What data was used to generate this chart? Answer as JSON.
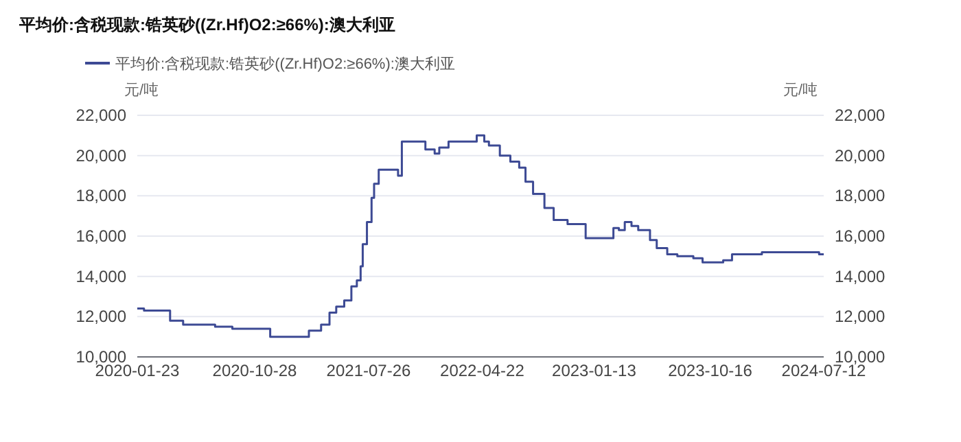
{
  "chart_data": {
    "type": "step",
    "title": "平均价:含税现款:锆英砂((Zr.Hf)O2:≥66%):澳大利亚",
    "ylabel": "元/吨",
    "y2label": "元/吨",
    "x": [
      "2020-01-23",
      "2020-02-08",
      "2020-04-10",
      "2020-05-11",
      "2020-07-26",
      "2020-09-05",
      "2020-12-04",
      "2021-03-06",
      "2021-04-04",
      "2021-04-24",
      "2021-05-10",
      "2021-05-29",
      "2021-06-15",
      "2021-06-28",
      "2021-07-07",
      "2021-07-12",
      "2021-07-22",
      "2021-08-02",
      "2021-08-08",
      "2021-08-19",
      "2021-10-04",
      "2021-10-13",
      "2021-12-08",
      "2021-12-30",
      "2022-01-10",
      "2022-02-01",
      "2022-04-09",
      "2022-04-27",
      "2022-05-08",
      "2022-06-03",
      "2022-06-28",
      "2022-07-19",
      "2022-08-03",
      "2022-08-21",
      "2022-09-17",
      "2022-10-09",
      "2022-11-11",
      "2022-12-24",
      "2023-02-28",
      "2023-03-13",
      "2023-03-27",
      "2023-04-12",
      "2023-04-28",
      "2023-05-26",
      "2023-06-11",
      "2023-07-06",
      "2023-07-30",
      "2023-09-06",
      "2023-09-28",
      "2023-11-16",
      "2023-12-07",
      "2024-02-16",
      "2024-07-01",
      "2024-07-12"
    ],
    "series": [
      {
        "name": "平均价:含税现款:锆英砂((Zr.Hf)O2:≥66%):澳大利亚",
        "color": "#3d4a94",
        "values": [
          12400,
          12300,
          11800,
          11600,
          11500,
          11400,
          11000,
          11300,
          11600,
          12200,
          12500,
          12800,
          13500,
          13800,
          14500,
          15600,
          16700,
          17900,
          18600,
          19300,
          19000,
          20700,
          20300,
          20100,
          20400,
          20700,
          21000,
          20700,
          20500,
          20000,
          19700,
          19400,
          18700,
          18100,
          17400,
          16800,
          16600,
          15900,
          16400,
          16300,
          16700,
          16500,
          16300,
          15800,
          15400,
          15100,
          15000,
          14900,
          14700,
          14800,
          15100,
          15200,
          15100,
          15100
        ]
      }
    ],
    "xlim": [
      "2020-01-23",
      "2024-07-12"
    ],
    "xticks": [
      "2020-01-23",
      "2020-10-28",
      "2021-07-26",
      "2022-04-22",
      "2023-01-13",
      "2023-10-16",
      "2024-07-12"
    ],
    "ylim": [
      10000,
      22000
    ],
    "yticks": [
      {
        "value": 10000,
        "label": "10,000"
      },
      {
        "value": 12000,
        "label": "12,000"
      },
      {
        "value": 14000,
        "label": "14,000"
      },
      {
        "value": 16000,
        "label": "16,000"
      },
      {
        "value": 18000,
        "label": "18,000"
      },
      {
        "value": 20000,
        "label": "20,000"
      },
      {
        "value": 22000,
        "label": "22,000"
      }
    ],
    "y2lim": [
      10000,
      22000
    ],
    "y2ticks": [
      {
        "value": 10000,
        "label": "10,000"
      },
      {
        "value": 12000,
        "label": "12,000"
      },
      {
        "value": 14000,
        "label": "14,000"
      },
      {
        "value": 16000,
        "label": "16,000"
      },
      {
        "value": 18000,
        "label": "18,000"
      },
      {
        "value": 20000,
        "label": "20,000"
      },
      {
        "value": 22000,
        "label": "22,000"
      }
    ],
    "grid": "y",
    "legend": "top"
  }
}
